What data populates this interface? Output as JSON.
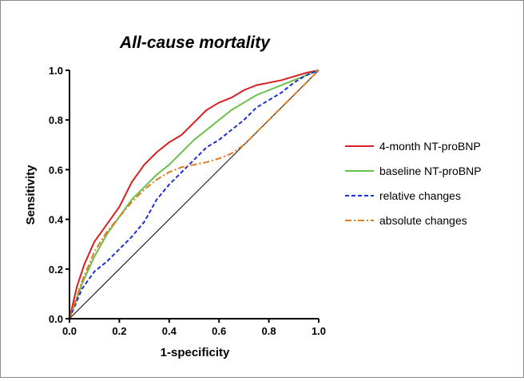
{
  "chart_data": {
    "type": "line",
    "title": "All-cause mortality",
    "xlabel": "1-specificity",
    "ylabel": "Sensitivity",
    "xlim": [
      0,
      1
    ],
    "ylim": [
      0,
      1
    ],
    "xticks": [
      0.0,
      0.2,
      0.4,
      0.6,
      0.8,
      1.0
    ],
    "yticks": [
      0.0,
      0.2,
      0.4,
      0.6,
      0.8,
      1.0
    ],
    "xtick_labels": [
      "0.0",
      "0.2",
      "0.4",
      "0.6",
      "0.8",
      "1.0"
    ],
    "ytick_labels": [
      "0.0",
      "0.2",
      "0.4",
      "0.6",
      "0.8",
      "1.0"
    ],
    "grid": false,
    "legend_position": "right",
    "reference_line": {
      "x": [
        0,
        1
      ],
      "y": [
        0,
        1
      ],
      "color": "#000000"
    },
    "series": [
      {
        "name": "4-month NT-proBNP",
        "color": "#d62020",
        "style": "solid",
        "x": [
          0,
          0.03,
          0.06,
          0.1,
          0.15,
          0.2,
          0.25,
          0.3,
          0.35,
          0.4,
          0.45,
          0.5,
          0.55,
          0.6,
          0.65,
          0.7,
          0.75,
          0.8,
          0.85,
          0.9,
          0.95,
          1.0
        ],
        "y": [
          0,
          0.13,
          0.22,
          0.31,
          0.38,
          0.45,
          0.55,
          0.62,
          0.67,
          0.71,
          0.74,
          0.79,
          0.84,
          0.87,
          0.89,
          0.92,
          0.94,
          0.95,
          0.96,
          0.975,
          0.99,
          1.0
        ]
      },
      {
        "name": "baseline NT-proBNP",
        "color": "#6cc04a",
        "style": "solid",
        "x": [
          0,
          0.05,
          0.1,
          0.15,
          0.2,
          0.25,
          0.3,
          0.35,
          0.4,
          0.45,
          0.5,
          0.55,
          0.6,
          0.65,
          0.7,
          0.75,
          0.8,
          0.85,
          0.9,
          0.95,
          1.0
        ],
        "y": [
          0,
          0.14,
          0.25,
          0.34,
          0.41,
          0.48,
          0.53,
          0.58,
          0.62,
          0.67,
          0.72,
          0.76,
          0.8,
          0.84,
          0.87,
          0.9,
          0.92,
          0.94,
          0.96,
          0.98,
          1.0
        ]
      },
      {
        "name": "relative changes",
        "color": "#1f2fd0",
        "style": "dashed",
        "x": [
          0,
          0.05,
          0.1,
          0.15,
          0.2,
          0.25,
          0.3,
          0.35,
          0.4,
          0.45,
          0.5,
          0.55,
          0.6,
          0.65,
          0.7,
          0.75,
          0.8,
          0.85,
          0.9,
          0.95,
          1.0
        ],
        "y": [
          0,
          0.12,
          0.19,
          0.23,
          0.28,
          0.33,
          0.39,
          0.48,
          0.54,
          0.59,
          0.64,
          0.69,
          0.72,
          0.76,
          0.8,
          0.85,
          0.88,
          0.91,
          0.95,
          0.98,
          1.0
        ]
      },
      {
        "name": "absolute changes",
        "color": "#e07a20",
        "style": "dashdot",
        "x": [
          0,
          0.05,
          0.1,
          0.15,
          0.2,
          0.25,
          0.3,
          0.35,
          0.4,
          0.45,
          0.5,
          0.55,
          0.6,
          0.65,
          0.7,
          0.75,
          0.8,
          0.85,
          0.9,
          0.95,
          1.0
        ],
        "y": [
          0,
          0.15,
          0.27,
          0.35,
          0.41,
          0.47,
          0.52,
          0.56,
          0.59,
          0.61,
          0.62,
          0.63,
          0.645,
          0.665,
          0.7,
          0.75,
          0.8,
          0.85,
          0.9,
          0.95,
          1.0
        ]
      }
    ]
  }
}
